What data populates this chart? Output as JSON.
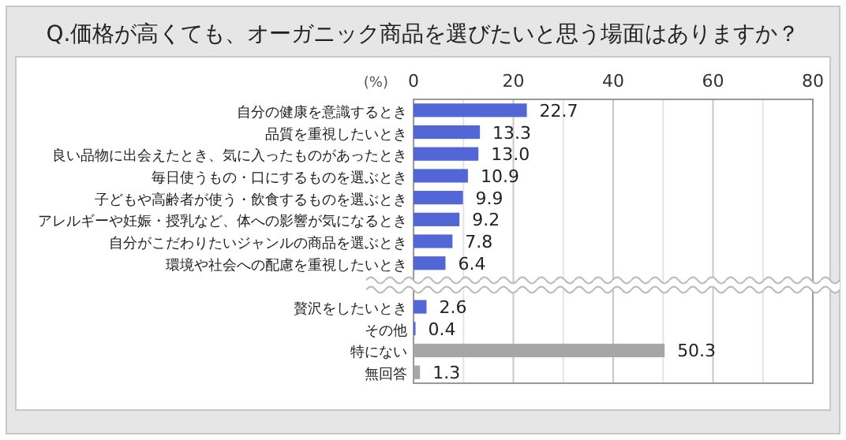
{
  "chart_data": {
    "type": "bar",
    "orientation": "horizontal",
    "title": "Q.価格が高くても、オーガニック商品を選びたいと思う場面はありますか？",
    "xlabel": "(%)",
    "categories": [
      "自分の健康を意識するとき",
      "品質を重視したいとき",
      "良い品物に出会えたとき、気に入ったものがあったとき",
      "毎日使うもの・口にするものを選ぶとき",
      "子どもや高齢者が使う・飲食するものを選ぶとき",
      "アレルギーや妊娠・授乳など、体への影響が気になるとき",
      "自分がこだわりたいジャンルの商品を選ぶとき",
      "環境や社会への配慮を重視したいとき",
      null,
      "贅沢をしたいとき",
      "その他",
      "特にない",
      "無回答"
    ],
    "values": [
      22.7,
      13.3,
      13.0,
      10.9,
      9.9,
      9.2,
      7.8,
      6.4,
      null,
      2.6,
      0.4,
      50.3,
      1.3
    ],
    "value_labels": [
      "22.7",
      "13.3",
      "13.0",
      "10.9",
      "9.9",
      "9.2",
      "7.8",
      "6.4",
      null,
      "2.6",
      "0.4",
      "50.3",
      "1.3"
    ],
    "colors": [
      "#5266d6",
      "#5266d6",
      "#5266d6",
      "#5266d6",
      "#5266d6",
      "#5266d6",
      "#5266d6",
      "#5266d6",
      null,
      "#5266d6",
      "#5266d6",
      "#a6a6a6",
      "#a6a6a6"
    ],
    "xlim": [
      0,
      80
    ],
    "xticks": [
      0,
      {
        "value": 10,
        "label": null
      },
      20,
      {
        "value": 30,
        "label": null
      },
      40,
      {
        "value": 50,
        "label": null
      },
      60,
      {
        "value": 70,
        "label": null
      },
      80
    ],
    "grid": "x"
  }
}
